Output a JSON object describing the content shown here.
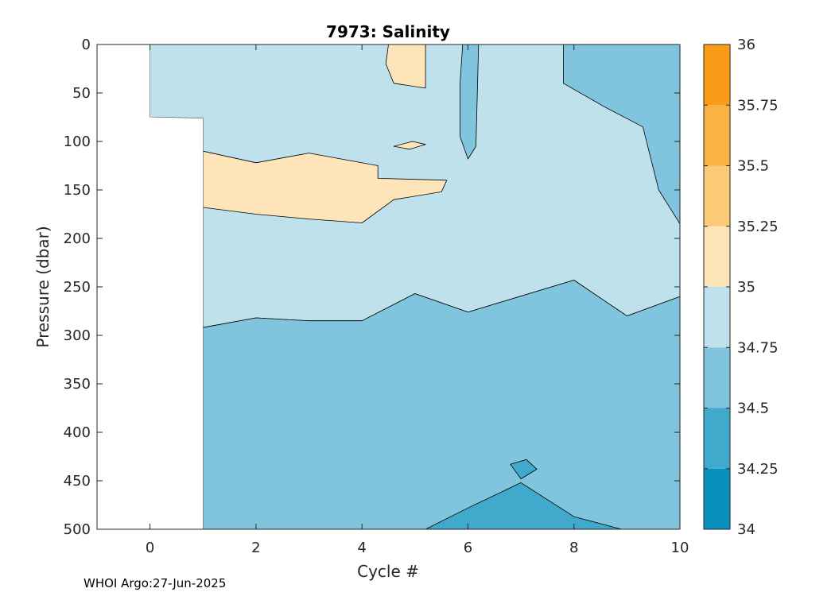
{
  "chart_data": {
    "type": "contour",
    "title": "7973:  Salinity",
    "xlabel": "Cycle #",
    "ylabel": "Pressure (dbar)",
    "xlim": [
      -1,
      10
    ],
    "ylim": [
      0,
      500
    ],
    "y_reversed": true,
    "x_ticks": [
      0,
      2,
      4,
      6,
      8,
      10
    ],
    "y_ticks": [
      0,
      50,
      100,
      150,
      200,
      250,
      300,
      350,
      400,
      450,
      500
    ],
    "colorbar": {
      "range": [
        34,
        36
      ],
      "ticks": [
        "34",
        "34.25",
        "34.5",
        "34.75",
        "35",
        "35.25",
        "35.5",
        "35.75",
        "36"
      ],
      "levels": [
        {
          "from": 34.0,
          "to": 34.25,
          "color": "#0b90bd"
        },
        {
          "from": 34.25,
          "to": 34.5,
          "color": "#41a9cc"
        },
        {
          "from": 34.5,
          "to": 34.75,
          "color": "#80c4dd"
        },
        {
          "from": 34.75,
          "to": 35.0,
          "color": "#bfe1ec"
        },
        {
          "from": 35.0,
          "to": 35.25,
          "color": "#fde5b9"
        },
        {
          "from": 35.25,
          "to": 35.5,
          "color": "#fbca76"
        },
        {
          "from": 35.5,
          "to": 35.75,
          "color": "#fab343"
        },
        {
          "from": 35.75,
          "to": 36.0,
          "color": "#fa9c17"
        }
      ]
    },
    "regions": [
      {
        "level": "34.75-35",
        "color": "#bfe1ec",
        "outline": [
          [
            0,
            0
          ],
          [
            10,
            0
          ],
          [
            10,
            260
          ],
          [
            9,
            280
          ],
          [
            8,
            243
          ],
          [
            6,
            276
          ],
          [
            5,
            257
          ],
          [
            4,
            285
          ],
          [
            3,
            285
          ],
          [
            2,
            282
          ],
          [
            1,
            292
          ],
          [
            1,
            76
          ],
          [
            0,
            75
          ]
        ]
      },
      {
        "level": "34.5-34.75",
        "color": "#80c4dd",
        "outline": [
          [
            1,
            292
          ],
          [
            2,
            282
          ],
          [
            3,
            285
          ],
          [
            4,
            285
          ],
          [
            5,
            257
          ],
          [
            6,
            276
          ],
          [
            8,
            243
          ],
          [
            9,
            280
          ],
          [
            10,
            260
          ],
          [
            10,
            500
          ],
          [
            1,
            500
          ]
        ]
      },
      {
        "level": "34.5-34.75",
        "color": "#80c4dd",
        "outline": [
          [
            7.8,
            0
          ],
          [
            10,
            0
          ],
          [
            10,
            185
          ],
          [
            9.6,
            150
          ],
          [
            9.3,
            85
          ],
          [
            8.6,
            65
          ],
          [
            7.8,
            40
          ]
        ]
      },
      {
        "level": "34.5-34.75",
        "color": "#80c4dd",
        "outline": [
          [
            5.9,
            0
          ],
          [
            6.2,
            0
          ],
          [
            6.15,
            105
          ],
          [
            6,
            118
          ],
          [
            5.85,
            95
          ],
          [
            5.85,
            40
          ]
        ]
      },
      {
        "level": "35-35.25",
        "color": "#fde5b9",
        "outline": [
          [
            1,
            110
          ],
          [
            2,
            122
          ],
          [
            3,
            112
          ],
          [
            4.3,
            125
          ],
          [
            4.3,
            138
          ],
          [
            5.6,
            140
          ],
          [
            5.5,
            152
          ],
          [
            4.6,
            160
          ],
          [
            4,
            184
          ],
          [
            3,
            180
          ],
          [
            2,
            175
          ],
          [
            1,
            168
          ]
        ]
      },
      {
        "level": "35-35.25",
        "color": "#fde5b9",
        "outline": [
          [
            4.5,
            0
          ],
          [
            5.2,
            0
          ],
          [
            5.2,
            45
          ],
          [
            4.6,
            40
          ],
          [
            4.45,
            20
          ]
        ]
      },
      {
        "level": "35-35.25",
        "color": "#fde5b9",
        "outline": [
          [
            4.6,
            105
          ],
          [
            4.95,
            100
          ],
          [
            5.2,
            103
          ],
          [
            4.9,
            108
          ]
        ]
      },
      {
        "level": "34.25-34.5",
        "color": "#41a9cc",
        "outline": [
          [
            5.2,
            500
          ],
          [
            6,
            478
          ],
          [
            7,
            452
          ],
          [
            8,
            487
          ],
          [
            8.9,
            500
          ]
        ]
      },
      {
        "level": "34.25-34.5",
        "color": "#41a9cc",
        "outline": [
          [
            6.8,
            433
          ],
          [
            7.1,
            428
          ],
          [
            7.3,
            438
          ],
          [
            7,
            448
          ]
        ]
      }
    ],
    "blank_region": [
      [
        -1,
        0
      ],
      [
        0,
        0
      ],
      [
        0,
        75
      ],
      [
        1,
        76
      ],
      [
        1,
        500
      ],
      [
        -1,
        500
      ]
    ]
  },
  "footer": "WHOI Argo:27-Jun-2025"
}
